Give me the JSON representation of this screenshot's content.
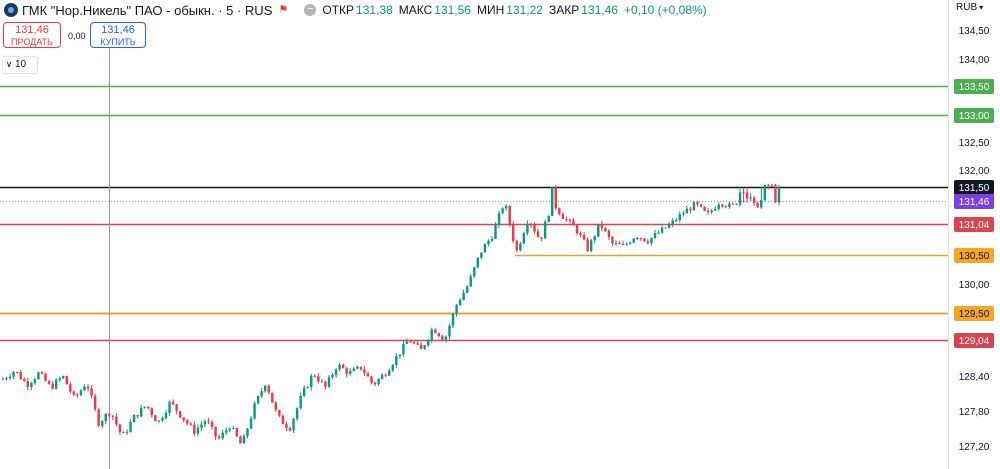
{
  "header": {
    "symbol": "ГМК \"Нор.Никель\" ПАО - обыкн. · 5 · RUS",
    "open_label": "ОТКР",
    "open": "131,38",
    "high_label": "МАКС",
    "high": "131,56",
    "low_label": "МИН",
    "low": "131,22",
    "close_label": "ЗАКР",
    "close": "131,46",
    "change": "+0,10 (+0,08%)"
  },
  "trade": {
    "sell_price": "131,46",
    "sell_label": "ПРОДАТЬ",
    "spread": "0,00",
    "buy_price": "131,46",
    "buy_label": "КУПИТЬ"
  },
  "volume_toggle": "10",
  "currency": "RUB",
  "colors": {
    "up": "#089981",
    "down": "#f23645",
    "green_line": "#4caf50",
    "red_line": "#d64550",
    "orange_line": "#e6a23c",
    "last_price": "#7b3fe4"
  },
  "chart_data": {
    "type": "candlestick",
    "y_ticks": [
      {
        "value": 134.5,
        "label": "134,50"
      },
      {
        "value": 134.0,
        "label": "134,00"
      },
      {
        "value": 132.5,
        "label": "132,50"
      },
      {
        "value": 132.0,
        "label": "132,00"
      },
      {
        "value": 130.0,
        "label": "130,00"
      },
      {
        "value": 128.4,
        "label": "128,40"
      },
      {
        "value": 127.8,
        "label": "127,80"
      },
      {
        "value": 127.2,
        "label": "127,20"
      }
    ],
    "levels": [
      {
        "value": 133.5,
        "label": "133,50",
        "color": "#4caf50",
        "from": 0
      },
      {
        "value": 133.0,
        "label": "133,00",
        "color": "#4caf50",
        "from": 0
      },
      {
        "value": 131.5,
        "label": "131,50",
        "color": "#131722",
        "from": 0
      },
      {
        "value": 131.04,
        "label": "131,04",
        "color": "#d64550",
        "from": 0
      },
      {
        "value": 130.5,
        "label": "130,50",
        "color": "#e6a23c",
        "from": 515
      },
      {
        "value": 129.5,
        "label": "129,50",
        "color": "#e6a23c",
        "from": 0
      },
      {
        "value": 129.04,
        "label": "129,04",
        "color": "#d64550",
        "from": 0
      }
    ],
    "last_price": {
      "value": 131.46,
      "label": "131,46"
    },
    "path": [
      128.35,
      128.5,
      128.25,
      128.45,
      128.2,
      128.4,
      128.0,
      128.3,
      127.6,
      127.8,
      127.35,
      127.7,
      127.9,
      127.6,
      127.95,
      127.7,
      127.45,
      127.65,
      127.3,
      127.55,
      127.2,
      127.85,
      128.3,
      127.7,
      127.5,
      128.05,
      128.45,
      128.2,
      128.6,
      128.45,
      128.55,
      128.25,
      128.45,
      128.75,
      129.05,
      128.85,
      129.25,
      129.05,
      129.65,
      130.0,
      130.55,
      130.85,
      131.45,
      130.55,
      131.15,
      130.75,
      131.45,
      131.15,
      130.95,
      130.6,
      131.05,
      130.7,
      130.65,
      130.85,
      130.75,
      130.9,
      131.05,
      131.25,
      131.4,
      131.2,
      131.45,
      131.35,
      131.55,
      131.35,
      131.55,
      131.46
    ]
  }
}
